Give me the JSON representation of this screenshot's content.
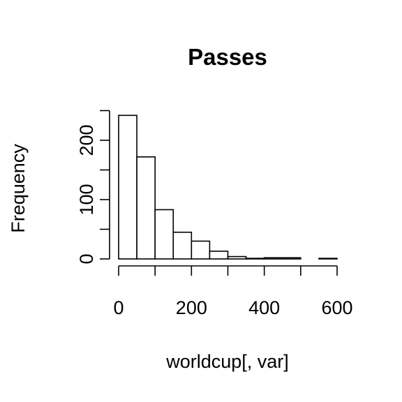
{
  "chart_data": {
    "type": "bar",
    "title": "Passes",
    "xlabel": "worldcup[, var]",
    "ylabel": "Frequency",
    "bins": [
      {
        "start": 0,
        "end": 50,
        "count": 242
      },
      {
        "start": 50,
        "end": 100,
        "count": 172
      },
      {
        "start": 100,
        "end": 150,
        "count": 83
      },
      {
        "start": 150,
        "end": 200,
        "count": 45
      },
      {
        "start": 200,
        "end": 250,
        "count": 30
      },
      {
        "start": 250,
        "end": 300,
        "count": 13
      },
      {
        "start": 300,
        "end": 350,
        "count": 4
      },
      {
        "start": 350,
        "end": 400,
        "count": 1
      },
      {
        "start": 400,
        "end": 450,
        "count": 2
      },
      {
        "start": 450,
        "end": 500,
        "count": 2
      },
      {
        "start": 500,
        "end": 550,
        "count": 0
      },
      {
        "start": 550,
        "end": 600,
        "count": 1
      }
    ],
    "xlim": [
      0,
      600
    ],
    "ylim": [
      0,
      250
    ],
    "x_ticks": [
      0,
      100,
      200,
      300,
      400,
      500,
      600
    ],
    "x_tick_labels": [
      "0",
      "",
      "200",
      "",
      "400",
      "",
      "600"
    ],
    "y_ticks": [
      0,
      50,
      100,
      150,
      200,
      250
    ],
    "y_tick_labels": [
      "0",
      "",
      "100",
      "",
      "200",
      ""
    ],
    "grid": false,
    "legend": "none"
  }
}
